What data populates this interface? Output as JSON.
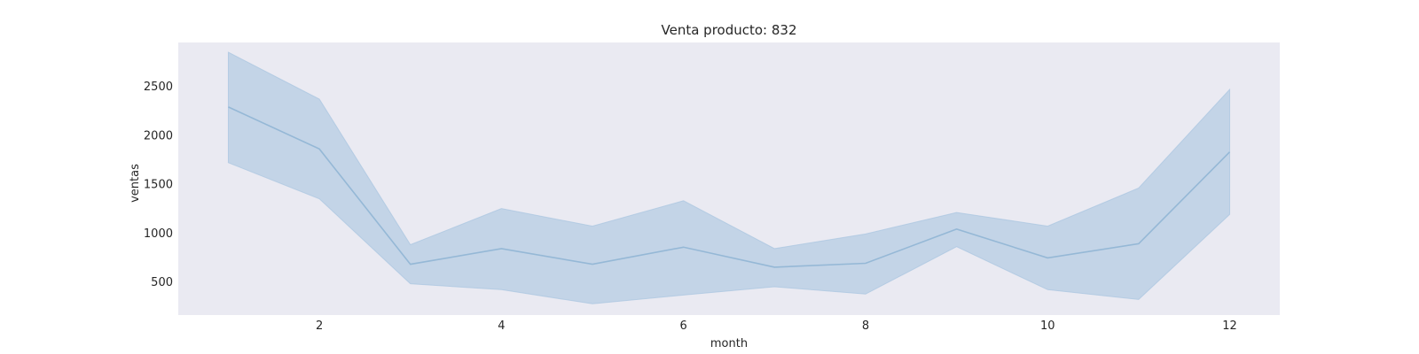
{
  "chart_data": {
    "type": "line",
    "title": "Venta producto: 832",
    "xlabel": "month",
    "ylabel": "ventas",
    "x": [
      1,
      2,
      3,
      4,
      5,
      6,
      7,
      8,
      9,
      10,
      11,
      12
    ],
    "series": [
      {
        "values": [
          2290,
          1860,
          680,
          840,
          680,
          855,
          650,
          690,
          1040,
          745,
          890,
          1830
        ],
        "ci_lower": [
          1720,
          1350,
          480,
          420,
          275,
          365,
          450,
          375,
          860,
          420,
          320,
          1190
        ],
        "ci_upper": [
          2850,
          2370,
          880,
          1250,
          1070,
          1330,
          840,
          990,
          1210,
          1070,
          1460,
          2470
        ]
      }
    ],
    "xticks": [
      2,
      4,
      6,
      8,
      10,
      12
    ],
    "yticks": [
      500,
      1000,
      1500,
      2000,
      2500
    ],
    "xlim": [
      0.45,
      12.55
    ],
    "ylim": [
      160,
      2950
    ],
    "grid": false,
    "colors": {
      "line": "#95b8d6",
      "band": "#a8c4df",
      "plot_background": "#eaeaf2",
      "page_background": "#ffffff"
    }
  }
}
